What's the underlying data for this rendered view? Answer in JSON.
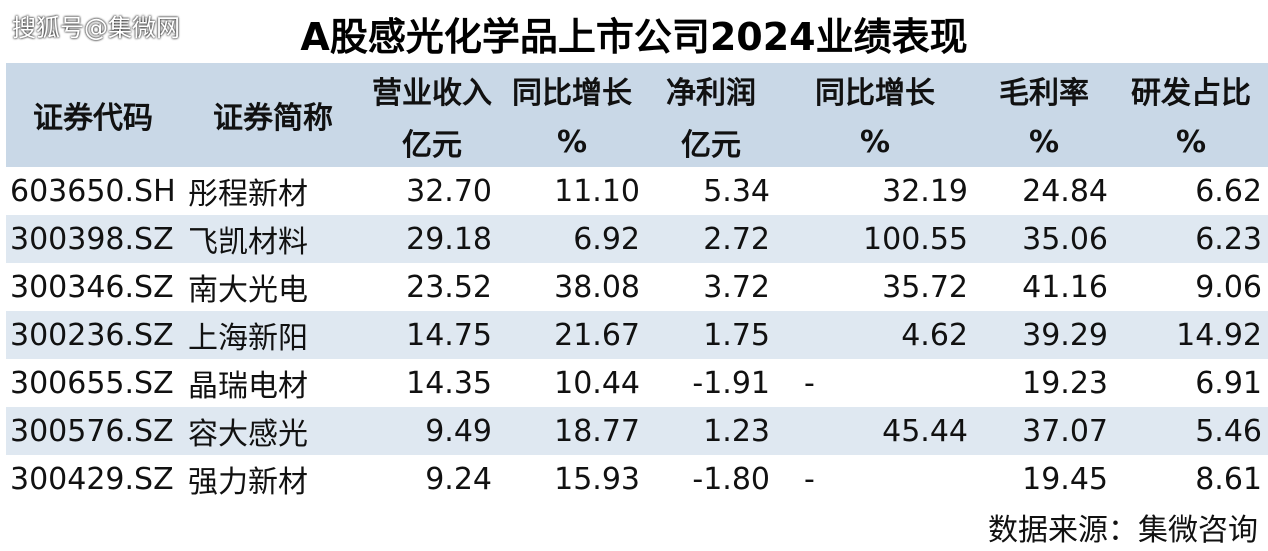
{
  "watermark": "搜狐号@集微网",
  "title": "A股感光化学品上市公司2024业绩表现",
  "headers": {
    "code": "证券代码",
    "name": "证券简称",
    "revenue": "营业收入",
    "revenue_unit": "亿元",
    "rev_growth": "同比增长",
    "rev_growth_unit": "%",
    "profit": "净利润",
    "profit_unit": "亿元",
    "profit_growth": "同比增长",
    "profit_growth_unit": "%",
    "gross_margin": "毛利率",
    "gross_margin_unit": "%",
    "rd_ratio": "研发占比",
    "rd_ratio_unit": "%"
  },
  "rows": [
    {
      "code": "603650.SH",
      "name": "彤程新材",
      "revenue": "32.70",
      "rev_growth": "11.10",
      "profit": "5.34",
      "profit_growth": "32.19",
      "gross_margin": "24.84",
      "rd_ratio": "6.62"
    },
    {
      "code": "300398.SZ",
      "name": "飞凯材料",
      "revenue": "29.18",
      "rev_growth": "6.92",
      "profit": "2.72",
      "profit_growth": "100.55",
      "gross_margin": "35.06",
      "rd_ratio": "6.23"
    },
    {
      "code": "300346.SZ",
      "name": "南大光电",
      "revenue": "23.52",
      "rev_growth": "38.08",
      "profit": "3.72",
      "profit_growth": "35.72",
      "gross_margin": "41.16",
      "rd_ratio": "9.06"
    },
    {
      "code": "300236.SZ",
      "name": "上海新阳",
      "revenue": "14.75",
      "rev_growth": "21.67",
      "profit": "1.75",
      "profit_growth": "4.62",
      "gross_margin": "39.29",
      "rd_ratio": "14.92"
    },
    {
      "code": "300655.SZ",
      "name": "晶瑞电材",
      "revenue": "14.35",
      "rev_growth": "10.44",
      "profit": "-1.91",
      "profit_growth": "-",
      "gross_margin": "19.23",
      "rd_ratio": "6.91"
    },
    {
      "code": "300576.SZ",
      "name": "容大感光",
      "revenue": "9.49",
      "rev_growth": "18.77",
      "profit": "1.23",
      "profit_growth": "45.44",
      "gross_margin": "37.07",
      "rd_ratio": "5.46"
    },
    {
      "code": "300429.SZ",
      "name": "强力新材",
      "revenue": "9.24",
      "rev_growth": "15.93",
      "profit": "-1.80",
      "profit_growth": "-",
      "gross_margin": "19.45",
      "rd_ratio": "8.61"
    }
  ],
  "source": "数据来源：集微咨询"
}
